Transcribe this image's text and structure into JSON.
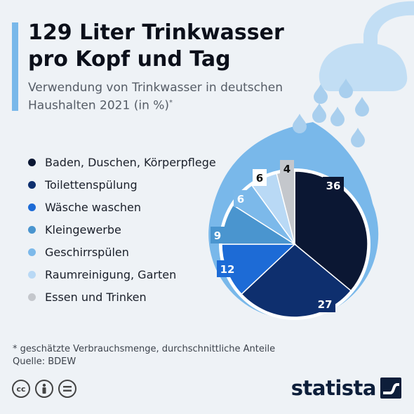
{
  "header": {
    "title": "129 Liter Trinkwasser pro Kopf und Tag",
    "subtitle": "Verwendung von Trinkwasser in deutschen Haushalten 2021 (in %)",
    "subtitle_mark": "*"
  },
  "chart_data": {
    "type": "pie",
    "title": "129 Liter Trinkwasser pro Kopf und Tag",
    "subtitle": "Verwendung von Trinkwasser in deutschen Haushalten 2021 (in %)",
    "categories": [
      "Baden, Duschen, Körperpflege",
      "Toilettenspülung",
      "Wäsche waschen",
      "Kleingewerbe",
      "Geschirrspülen",
      "Raumreinigung, Garten",
      "Essen und Trinken"
    ],
    "values": [
      36,
      27,
      12,
      9,
      6,
      6,
      4
    ],
    "colors": [
      "#0b1733",
      "#0e2f6e",
      "#1d6bd6",
      "#4a95cf",
      "#7cb9ea",
      "#b9d9f5",
      "#c4c7cc"
    ],
    "legend_position": "left"
  },
  "footer": {
    "footnote": "* geschätzte Verbrauchsmenge, durchschnittliche Anteile",
    "source": "Quelle: BDEW",
    "brand": "statista"
  },
  "icons": {
    "accent": "#79b8ea",
    "drop_outer": "#79b8ea",
    "drop_inner": "#ffffff",
    "shower": "#c2def4",
    "droplets": "#a9cfee"
  }
}
